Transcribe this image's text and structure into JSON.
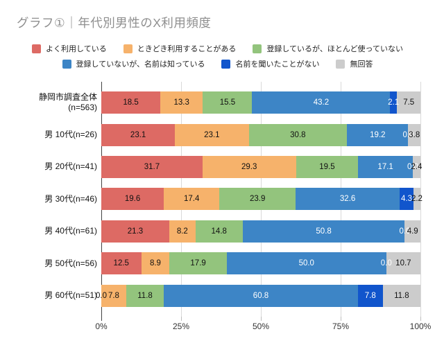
{
  "title": "グラフ①｜年代別男性のX利用頻度",
  "colors": {
    "background": "#ffffff",
    "title_text": "#8f8f8f",
    "category_label": "#111111",
    "tick_label": "#333333",
    "axis_line": "#424242",
    "gridline": "#d9d9d9"
  },
  "chart_data": {
    "type": "bar",
    "variant": "horizontal-stacked-100pct",
    "stacked": true,
    "grid": true,
    "legend_position": "top",
    "value_label_format": "one_decimal",
    "xlabel": "",
    "ylabel": "",
    "x_axis": {
      "ticks": [
        "0%",
        "25%",
        "50%",
        "75%",
        "100%"
      ],
      "tick_values": [
        0,
        25,
        50,
        75,
        100
      ],
      "min": 0,
      "max": 100
    },
    "categories": [
      "静岡市調査全体\n(n=563)",
      "男 10代(n=26)",
      "男 20代(n=41)",
      "男 30代(n=46)",
      "男 40代(n=61)",
      "男 50代(n=56)",
      "男 60代(n=51)"
    ],
    "series": [
      {
        "name": "よく利用している",
        "color": "#dd6a64",
        "label_color": "#111111",
        "values": [
          18.5,
          23.1,
          31.7,
          19.6,
          21.3,
          12.5,
          0.0
        ]
      },
      {
        "name": "ときどき利用することがある",
        "color": "#f6b26b",
        "label_color": "#111111",
        "values": [
          13.3,
          23.1,
          29.3,
          17.4,
          8.2,
          8.9,
          7.8
        ]
      },
      {
        "name": "登録しているが、ほとんど使っていない",
        "color": "#93c47d",
        "label_color": "#111111",
        "values": [
          15.5,
          30.8,
          19.5,
          23.9,
          14.8,
          17.9,
          11.8
        ]
      },
      {
        "name": "登録していないが、名前は知っている",
        "color": "#3d85c6",
        "label_color": "#ffffff",
        "values": [
          43.2,
          19.2,
          17.1,
          32.6,
          50.8,
          50.0,
          60.8
        ]
      },
      {
        "name": "名前を聞いたことがない",
        "color": "#1155cc",
        "label_color": "#ffffff",
        "values": [
          2.1,
          0.0,
          0.0,
          4.3,
          0.0,
          0.0,
          7.8
        ]
      },
      {
        "name": "無回答",
        "color": "#cccccc",
        "label_color": "#111111",
        "values": [
          7.5,
          3.8,
          2.4,
          2.2,
          4.9,
          10.7,
          11.8
        ]
      }
    ],
    "legend_rows": [
      [
        0,
        1,
        2
      ],
      [
        3,
        4,
        5
      ]
    ]
  }
}
